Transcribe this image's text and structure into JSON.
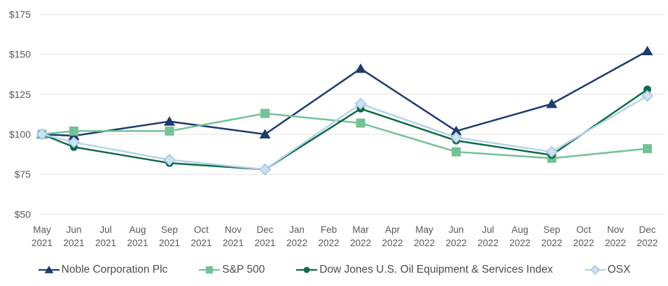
{
  "chart_data": {
    "type": "line",
    "title": "",
    "xlabel": "",
    "ylabel": "",
    "categories": [
      "May 2021",
      "Jun 2021",
      "Jul 2021",
      "Aug 2021",
      "Sep 2021",
      "Oct 2021",
      "Nov 2021",
      "Dec 2021",
      "Jan 2022",
      "Feb 2022",
      "Mar 2022",
      "Apr 2022",
      "May 2022",
      "Jun 2022",
      "Jul 2022",
      "Aug 2022",
      "Sep 2022",
      "Oct 2022",
      "Nov 2022",
      "Dec 2022"
    ],
    "data_month_indices": [
      0,
      1,
      4,
      7,
      10,
      13,
      16,
      19
    ],
    "y_tick_labels": [
      "$50",
      "$75",
      "$100",
      "$125",
      "$150",
      "$175"
    ],
    "y_tick_values": [
      50,
      75,
      100,
      125,
      150,
      175
    ],
    "ylim": [
      50,
      175
    ],
    "grid": "horizontal",
    "legend_position": "bottom",
    "axis_text_color": "#595959",
    "gridline_color": "#e3e3e3",
    "series": [
      {
        "name": "Noble Corporation Plc",
        "marker": "triangle",
        "color": "#1e3b6e",
        "marker_fill": "#1e3b6e",
        "marker_stroke": "#1e3b6e",
        "values": [
          100,
          99,
          108,
          100,
          141,
          102,
          119,
          152
        ]
      },
      {
        "name": "S&P 500",
        "marker": "square",
        "color": "#74c296",
        "marker_fill": "#74c296",
        "marker_stroke": "#74c296",
        "values": [
          100,
          102,
          102,
          113,
          107,
          89,
          85,
          91
        ]
      },
      {
        "name": "Dow Jones U.S. Oil Equipment & Services Index",
        "marker": "circle",
        "color": "#0e6b45",
        "marker_fill": "#0e6b45",
        "marker_stroke": "#0e6b45",
        "values": [
          100,
          92,
          82,
          78,
          116,
          96,
          87,
          128
        ]
      },
      {
        "name": "OSX",
        "marker": "diamond",
        "color": "#b5d3ea",
        "marker_fill": "#cfe2f2",
        "marker_stroke": "#9dc3e0",
        "values": [
          100,
          95,
          84,
          78,
          119,
          98,
          89,
          124
        ]
      }
    ]
  }
}
